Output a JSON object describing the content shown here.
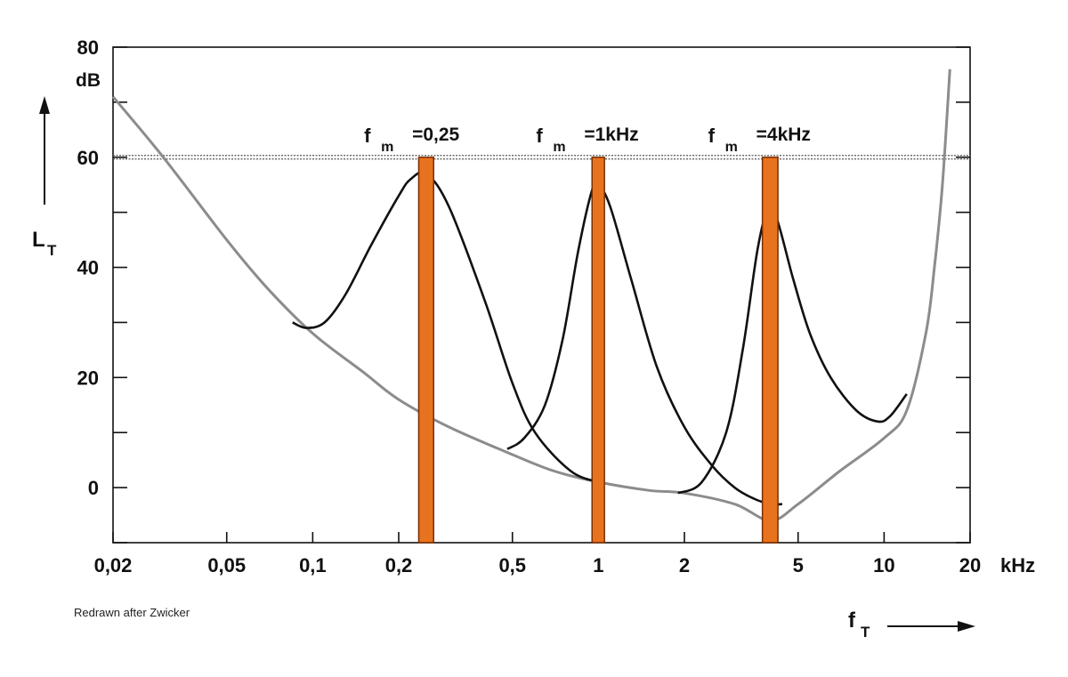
{
  "credit": "Redrawn after Zwicker",
  "colors": {
    "threshold_curve": "#8c8c8c",
    "masking_curve": "#111111",
    "masker_band": "#e8731f",
    "masker_band_edge": "#7a2e00",
    "reference_line": "#555555",
    "axis": "#111111"
  },
  "chart_data": {
    "type": "line",
    "title": "",
    "x_scale": "log",
    "xlim": [
      0.02,
      20
    ],
    "ylim": [
      -10,
      80
    ],
    "x_unit": "kHz",
    "y_unit": "dB",
    "xlabel": {
      "main": "f",
      "sub": "T"
    },
    "ylabel": {
      "main": "L",
      "sub": "T"
    },
    "x_ticks": [
      {
        "value": 0.02,
        "label": "0,02"
      },
      {
        "value": 0.05,
        "label": "0,05"
      },
      {
        "value": 0.1,
        "label": "0,1"
      },
      {
        "value": 0.2,
        "label": "0,2"
      },
      {
        "value": 0.5,
        "label": "0,5"
      },
      {
        "value": 1,
        "label": "1"
      },
      {
        "value": 2,
        "label": "2"
      },
      {
        "value": 5,
        "label": "5"
      },
      {
        "value": 10,
        "label": "10"
      },
      {
        "value": 20,
        "label": "20"
      }
    ],
    "y_ticks": [
      {
        "value": 0,
        "label": "0"
      },
      {
        "value": 20,
        "label": "20"
      },
      {
        "value": 40,
        "label": "40"
      },
      {
        "value": 60,
        "label": "60"
      },
      {
        "value": 80,
        "label": "80"
      }
    ],
    "y_minor_ticks": [
      -10,
      10,
      30,
      50,
      70
    ],
    "reference_level": 60,
    "threshold_in_quiet": {
      "x": [
        0.02,
        0.03,
        0.05,
        0.07,
        0.1,
        0.15,
        0.2,
        0.3,
        0.5,
        0.7,
        1,
        1.5,
        2,
        3,
        4,
        5,
        7,
        10,
        12,
        14,
        15,
        16,
        17
      ],
      "y": [
        71,
        60,
        45,
        36,
        28,
        21,
        16,
        11,
        6,
        3,
        1,
        -0.5,
        -1,
        -3,
        -6,
        -3,
        3,
        9,
        14,
        28,
        40,
        55,
        76
      ]
    },
    "maskers": [
      {
        "label": {
          "main": "f",
          "sub": "m",
          "value": "=0,25"
        },
        "center": 0.25,
        "width": [
          0.235,
          0.265
        ],
        "level": 60,
        "masking_curve": {
          "x": [
            0.085,
            0.095,
            0.11,
            0.13,
            0.16,
            0.2,
            0.22,
            0.25,
            0.3,
            0.4,
            0.5,
            0.6,
            0.8,
            1
          ],
          "y": [
            30,
            29,
            30,
            35,
            44,
            53,
            56,
            57,
            51,
            34,
            19,
            10,
            3,
            1
          ]
        }
      },
      {
        "label": {
          "main": "f",
          "sub": "m",
          "value": "=1kHz"
        },
        "center": 1,
        "width": [
          0.95,
          1.05
        ],
        "level": 60,
        "masking_curve": {
          "x": [
            0.48,
            0.55,
            0.65,
            0.75,
            0.85,
            0.95,
            1,
            1.1,
            1.3,
            1.6,
            2,
            2.5,
            3,
            3.5,
            4,
            4.4
          ],
          "y": [
            7,
            9,
            15,
            27,
            43,
            54,
            55,
            51,
            38,
            22,
            11,
            4,
            0,
            -2,
            -3,
            -3
          ]
        }
      },
      {
        "label": {
          "main": "f",
          "sub": "m",
          "value": "=4kHz"
        },
        "center": 4,
        "width": [
          3.75,
          4.25
        ],
        "level": 60,
        "masking_curve": {
          "x": [
            1.9,
            2.3,
            2.8,
            3.2,
            3.6,
            3.9,
            4.2,
            4.8,
            5.5,
            6.5,
            8,
            9.5,
            10.5,
            12
          ],
          "y": [
            -1,
            1,
            10,
            25,
            43,
            50,
            49,
            38,
            28,
            20,
            14,
            12,
            13,
            17
          ]
        }
      }
    ]
  }
}
